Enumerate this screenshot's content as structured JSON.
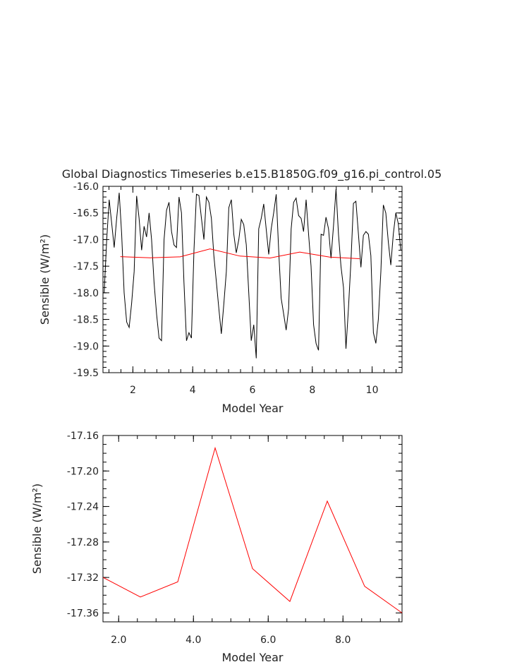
{
  "title": "Global Diagnostics Timeseries b.e15.B1850G.f09_g16.pi_control.05",
  "chart_data": [
    {
      "type": "line",
      "xlabel": "Model Year",
      "ylabel": "Sensible (W/m²)",
      "xlim": [
        1.0,
        11.0
      ],
      "ylim": [
        -19.5,
        -16.0
      ],
      "xticks": [
        2,
        4,
        6,
        8,
        10
      ],
      "xtick_labels": [
        "2",
        "4",
        "6",
        "8",
        "10"
      ],
      "yticks": [
        -16.0,
        -16.5,
        -17.0,
        -17.5,
        -18.0,
        -18.5,
        -19.0,
        -19.5
      ],
      "ytick_labels": [
        "-16.0",
        "-16.5",
        "-17.0",
        "-17.5",
        "-18.0",
        "-18.5",
        "-19.0",
        "-19.5"
      ],
      "series": [
        {
          "color": "#000000",
          "x": [
            1.04,
            1.125,
            1.208,
            1.292,
            1.375,
            1.458,
            1.542,
            1.625,
            1.708,
            1.792,
            1.875,
            1.958,
            2.042,
            2.125,
            2.208,
            2.292,
            2.375,
            2.458,
            2.542,
            2.625,
            2.708,
            2.792,
            2.875,
            2.958,
            3.042,
            3.125,
            3.208,
            3.292,
            3.375,
            3.458,
            3.542,
            3.625,
            3.708,
            3.792,
            3.875,
            3.958,
            4.042,
            4.125,
            4.208,
            4.292,
            4.375,
            4.458,
            4.542,
            4.625,
            4.708,
            4.792,
            4.875,
            4.958,
            5.042,
            5.125,
            5.208,
            5.292,
            5.375,
            5.458,
            5.542,
            5.625,
            5.708,
            5.792,
            5.875,
            5.958,
            6.042,
            6.125,
            6.208,
            6.292,
            6.375,
            6.458,
            6.542,
            6.625,
            6.708,
            6.792,
            6.875,
            6.958,
            7.042,
            7.125,
            7.208,
            7.292,
            7.375,
            7.458,
            7.542,
            7.625,
            7.708,
            7.792,
            7.875,
            7.958,
            8.042,
            8.125,
            8.208,
            8.292,
            8.375,
            8.458,
            8.542,
            8.625,
            8.708,
            8.792,
            8.875,
            8.958,
            9.042,
            9.125,
            9.208,
            9.292,
            9.375,
            9.458,
            9.542,
            9.625,
            9.708,
            9.792,
            9.875,
            9.958,
            10.042,
            10.125,
            10.208,
            10.292,
            10.375,
            10.458,
            10.542,
            10.625,
            10.708,
            10.792,
            10.875,
            10.958
          ],
          "y": [
            -18.0,
            -17.0,
            -16.25,
            -16.7,
            -17.15,
            -16.6,
            -16.12,
            -16.9,
            -18.0,
            -18.55,
            -18.65,
            -18.2,
            -17.6,
            -16.18,
            -16.6,
            -17.2,
            -16.75,
            -16.95,
            -16.5,
            -17.0,
            -17.8,
            -18.4,
            -18.85,
            -18.9,
            -17.0,
            -16.45,
            -16.3,
            -16.85,
            -17.1,
            -17.15,
            -16.2,
            -16.5,
            -17.8,
            -18.9,
            -18.75,
            -18.85,
            -17.2,
            -16.15,
            -16.17,
            -16.6,
            -17.0,
            -16.2,
            -16.3,
            -16.6,
            -17.3,
            -17.8,
            -18.3,
            -18.77,
            -18.2,
            -17.6,
            -16.4,
            -16.25,
            -16.9,
            -17.25,
            -17.0,
            -16.62,
            -16.72,
            -17.1,
            -18.0,
            -18.9,
            -18.6,
            -19.23,
            -16.8,
            -16.6,
            -16.33,
            -16.8,
            -17.28,
            -16.8,
            -16.5,
            -16.15,
            -17.2,
            -18.1,
            -18.4,
            -18.7,
            -18.3,
            -16.8,
            -16.3,
            -16.22,
            -16.55,
            -16.6,
            -16.85,
            -16.25,
            -16.9,
            -17.5,
            -18.6,
            -18.95,
            -19.08,
            -16.9,
            -16.92,
            -16.58,
            -16.8,
            -17.35,
            -16.75,
            -16.05,
            -16.9,
            -17.5,
            -17.9,
            -19.05,
            -18.3,
            -17.4,
            -16.32,
            -16.28,
            -16.9,
            -17.52,
            -16.92,
            -16.85,
            -16.9,
            -17.3,
            -18.75,
            -18.95,
            -18.5,
            -17.6,
            -16.35,
            -16.5,
            -17.05,
            -17.48,
            -16.9,
            -16.5,
            -16.7,
            -17.2
          ]
        },
        {
          "color": "#ff0000",
          "x": [
            1.58,
            2.58,
            3.58,
            4.58,
            5.58,
            6.58,
            7.58,
            8.58,
            9.58
          ],
          "y": [
            -17.32,
            -17.342,
            -17.325,
            -17.174,
            -17.31,
            -17.347,
            -17.234,
            -17.33,
            -17.36
          ]
        }
      ]
    },
    {
      "type": "line",
      "xlabel": "Model Year",
      "ylabel": "Sensible (W/m²)",
      "xlim": [
        1.58,
        9.58
      ],
      "ylim": [
        -17.37,
        -17.16
      ],
      "xticks": [
        2.0,
        4.0,
        6.0,
        8.0
      ],
      "xtick_labels": [
        "2.0",
        "4.0",
        "6.0",
        "8.0"
      ],
      "yticks": [
        -17.16,
        -17.2,
        -17.24,
        -17.28,
        -17.32,
        -17.36
      ],
      "ytick_labels": [
        "-17.16",
        "-17.20",
        "-17.24",
        "-17.28",
        "-17.32",
        "-17.36"
      ],
      "series": [
        {
          "color": "#ff0000",
          "x": [
            1.58,
            2.58,
            3.58,
            4.58,
            5.58,
            6.58,
            7.58,
            8.58,
            9.58
          ],
          "y": [
            -17.32,
            -17.342,
            -17.325,
            -17.174,
            -17.31,
            -17.347,
            -17.234,
            -17.33,
            -17.36
          ]
        }
      ]
    }
  ]
}
